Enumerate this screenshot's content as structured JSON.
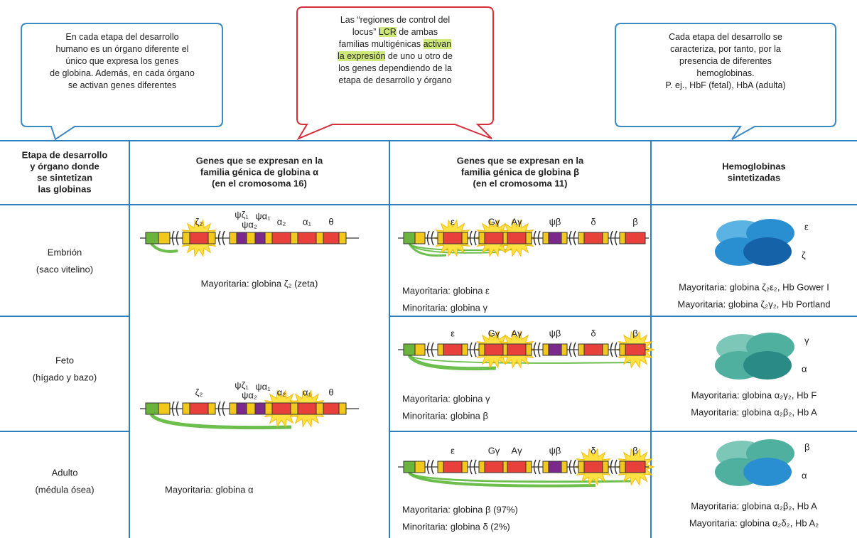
{
  "callouts": {
    "left": [
      "En cada etapa del desarrollo",
      "humano es un órgano diferente el",
      "único que expresa los genes",
      "de globina. Además, en cada órgano",
      "se activan genes diferentes"
    ],
    "center": [
      [
        "Las “regiones de control del"
      ],
      [
        "locus” ",
        {
          "text": "LCR",
          "highlight": true
        },
        " de ambas"
      ],
      [
        "familias multigénicas ",
        {
          "text": "activan",
          "highlight": true
        }
      ],
      [
        {
          "text": "la expresión",
          "highlight": true
        },
        " de uno u otro de"
      ],
      [
        "los genes dependiendo de la"
      ],
      [
        "etapa de desarrollo y órgano"
      ]
    ],
    "right": [
      "Cada etapa del desarrollo se",
      "caracteriza, por tanto, por la",
      "presencia de diferentes",
      "hemoglobinas.",
      "P. ej., HbF (fetal), HbA (adulta)"
    ]
  },
  "table": {
    "header": [
      [
        "Etapa de desarrollo",
        "y órgano donde",
        "se sintetizan",
        "las globinas"
      ],
      [
        "Genes que se expresan en la",
        "familia génica de globina α",
        "(en el cromosoma 16)"
      ],
      [
        "Genes que se expresan en la",
        "familia génica de globina β",
        "(en el cromosoma 11)"
      ],
      [
        "Hemoglobinas",
        "sintetizadas"
      ]
    ],
    "alpha_diagrams": [
      {
        "genes": [
          "ζ₂",
          "ψζ₁",
          "ψα₂",
          "ψα₁",
          "α₂",
          "α₁",
          "θ"
        ],
        "note": "Mayoritaria: globina ζ₂ (zeta)"
      },
      {
        "genes": [
          "ζ₂",
          "ψζ₁",
          "ψα₂",
          "ψα₁",
          "α₂",
          "α₁",
          "θ"
        ],
        "note": "Mayoritaria: globina α"
      }
    ],
    "rows": [
      {
        "stage": "Embrión",
        "organ": "(saco vitelino)",
        "beta_genes": [
          "ε",
          "Gγ",
          "Aγ",
          "ψβ",
          "δ",
          "β"
        ],
        "beta_notes": [
          "Mayoritaria: globina ε",
          "Minoritaria: globina γ"
        ],
        "hb_chains": [
          "ε",
          "ζ"
        ],
        "hb_notes": [
          "Mayoritaria: globina ζ₂ε₂, Hb Gower I",
          "Mayoritaria: globina ζ₂γ₂, Hb Portland"
        ]
      },
      {
        "stage": "Feto",
        "organ": "(hígado y bazo)",
        "beta_genes": [
          "ε",
          "Gγ",
          "Aγ",
          "ψβ",
          "δ",
          "β"
        ],
        "beta_notes": [
          "Mayoritaria: globina γ",
          "Minoritaria: globina β"
        ],
        "hb_chains": [
          "γ",
          "α"
        ],
        "hb_notes": [
          "Mayoritaria: globina α₂γ₂, Hb F",
          "Mayoritaria: globina α₂β₂, Hb A"
        ]
      },
      {
        "stage": "Adulto",
        "organ": "(médula ósea)",
        "beta_genes": [
          "ε",
          "Gγ",
          "Aγ",
          "ψβ",
          "δ",
          "β"
        ],
        "beta_notes": [
          "Mayoritaria: globina β (97%)",
          "Minoritaria: globina δ (2%)"
        ],
        "hb_chains": [
          "β",
          "α"
        ],
        "hb_notes": [
          "Mayoritaria: globina α₂β₂, Hb A",
          "Mayoritaria: globina α₂δ₂, Hb A₂"
        ]
      }
    ]
  }
}
